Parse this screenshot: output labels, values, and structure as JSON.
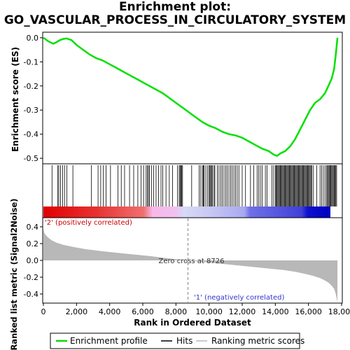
{
  "title_line1": "Enrichment plot:",
  "title_line2": "GO_VASCULAR_PROCESS_IN_CIRCULATORY_SYSTEM",
  "chart_data": {
    "type": "line",
    "es_panel": {
      "ylabel": "Enrichment score (ES)",
      "ylim": [
        -0.52,
        0.02
      ],
      "yticks": [
        0.0,
        -0.1,
        -0.2,
        -0.3,
        -0.4,
        -0.5
      ],
      "ytick_labels": [
        "0.0",
        "-0.1",
        "-0.2",
        "-0.3",
        "-0.4",
        "-0.5"
      ],
      "series_name": "Enrichment profile",
      "color": "#00e000",
      "x": [
        0,
        300,
        600,
        800,
        1000,
        1200,
        1400,
        1700,
        2000,
        2400,
        2800,
        3200,
        3600,
        4000,
        4400,
        4800,
        5200,
        5600,
        6000,
        6400,
        6800,
        7200,
        7600,
        8000,
        8400,
        8800,
        9200,
        9600,
        10000,
        10400,
        10800,
        11200,
        11600,
        12000,
        12400,
        12800,
        13200,
        13600,
        13900,
        14100,
        14300,
        14600,
        14900,
        15200,
        15500,
        15800,
        16100,
        16400,
        16700,
        17000,
        17200,
        17400,
        17550,
        17650,
        17750
      ],
      "y": [
        0.0,
        -0.015,
        -0.025,
        -0.018,
        -0.01,
        -0.005,
        -0.003,
        -0.01,
        -0.03,
        -0.05,
        -0.07,
        -0.085,
        -0.095,
        -0.11,
        -0.125,
        -0.14,
        -0.155,
        -0.17,
        -0.185,
        -0.2,
        -0.215,
        -0.23,
        -0.25,
        -0.27,
        -0.29,
        -0.31,
        -0.33,
        -0.35,
        -0.365,
        -0.375,
        -0.39,
        -0.4,
        -0.405,
        -0.415,
        -0.43,
        -0.445,
        -0.46,
        -0.47,
        -0.485,
        -0.49,
        -0.48,
        -0.47,
        -0.45,
        -0.42,
        -0.38,
        -0.34,
        -0.3,
        -0.27,
        -0.255,
        -0.23,
        -0.2,
        -0.17,
        -0.13,
        -0.07,
        0.0
      ]
    },
    "hits": {
      "series_name": "Hits",
      "x": [
        520,
        860,
        930,
        1040,
        1160,
        1280,
        1420,
        1780,
        2900,
        3300,
        3460,
        3620,
        3780,
        4050,
        4500,
        4700,
        4900,
        5200,
        5450,
        5700,
        5900,
        6050,
        6200,
        6280,
        6340,
        6400,
        6520,
        6650,
        6800,
        6950,
        7100,
        7200,
        7400,
        7600,
        7800,
        8100,
        8200,
        8250,
        8300,
        8350,
        8400,
        8950,
        9400,
        9500,
        9600,
        9650,
        9700,
        9800,
        9900,
        10000,
        10050,
        10100,
        10150,
        10200,
        10300,
        10350,
        10500,
        10600,
        10700,
        10800,
        10900,
        11000,
        11100,
        11200,
        11300,
        11400,
        11500,
        11600,
        11700,
        11800,
        12000,
        12200,
        12500,
        12700,
        12900,
        13000,
        13100,
        13200,
        13400,
        13500,
        13800,
        13900,
        14000,
        14050,
        14100,
        14150,
        14200,
        14250,
        14300,
        14350,
        14400,
        14450,
        14500,
        14550,
        14600,
        14650,
        14700,
        14750,
        14800,
        14850,
        14900,
        14950,
        15000,
        15050,
        15100,
        15150,
        15200,
        15250,
        15300,
        15350,
        15400,
        15450,
        15500,
        15550,
        15600,
        15650,
        15700,
        15750,
        15800,
        15850,
        15900,
        15950,
        16000,
        16050,
        16100,
        16150,
        16200,
        16300,
        16500,
        16700,
        16800,
        16900,
        17000,
        17100,
        17150,
        17200,
        17250,
        17300,
        17350,
        17400,
        17450,
        17500,
        17550,
        17600,
        17650,
        17700
      ]
    },
    "rank_panel": {
      "ylabel": "Ranked list metric (Signal2Noise)",
      "xlabel": "Rank in Ordered Dataset",
      "ylim": [
        -0.5,
        0.5
      ],
      "yticks": [
        0.4,
        0.2,
        0.0,
        -0.2,
        -0.4
      ],
      "ytick_labels": [
        "0.4",
        "0.2",
        "0.0",
        "-0.2",
        "-0.4"
      ],
      "series_name": "Ranking metric scores",
      "fill_color": "#b8b8b8",
      "x": [
        0,
        50,
        150,
        300,
        500,
        800,
        1200,
        1800,
        2500,
        3500,
        4500,
        5500,
        6500,
        7500,
        8726,
        9500,
        10500,
        11500,
        12500,
        13500,
        14500,
        15200,
        15800,
        16300,
        16700,
        17000,
        17200,
        17400,
        17550,
        17650,
        17700,
        17750
      ],
      "y": [
        0.38,
        0.33,
        0.3,
        0.27,
        0.24,
        0.21,
        0.185,
        0.16,
        0.135,
        0.11,
        0.09,
        0.07,
        0.05,
        0.025,
        0.0,
        -0.015,
        -0.035,
        -0.055,
        -0.075,
        -0.095,
        -0.115,
        -0.135,
        -0.16,
        -0.185,
        -0.21,
        -0.24,
        -0.265,
        -0.3,
        -0.34,
        -0.4,
        -0.45,
        -0.5
      ],
      "zero_cross_label": "Zero cross at 8726",
      "zero_cross": 8726,
      "pos_label": "'2' (positively correlated)",
      "neg_label": "'1' (negatively correlated)"
    },
    "xlim": [
      0,
      18000
    ],
    "xticks": [
      0,
      2000,
      4000,
      6000,
      8000,
      10000,
      12000,
      14000,
      16000,
      18000
    ],
    "xtick_labels": [
      "0",
      "2,000",
      "4,000",
      "6,000",
      "8,000",
      "10,000",
      "12,000",
      "14,000",
      "16,000",
      "18,000"
    ],
    "n_ranked": 17750,
    "legend": {
      "placement": "bottom",
      "items": [
        {
          "label": "Enrichment profile",
          "color": "#00e000"
        },
        {
          "label": "Hits",
          "color": "#000000"
        },
        {
          "label": "Ranking metric scores",
          "color": "#b8b8b8"
        }
      ]
    }
  }
}
